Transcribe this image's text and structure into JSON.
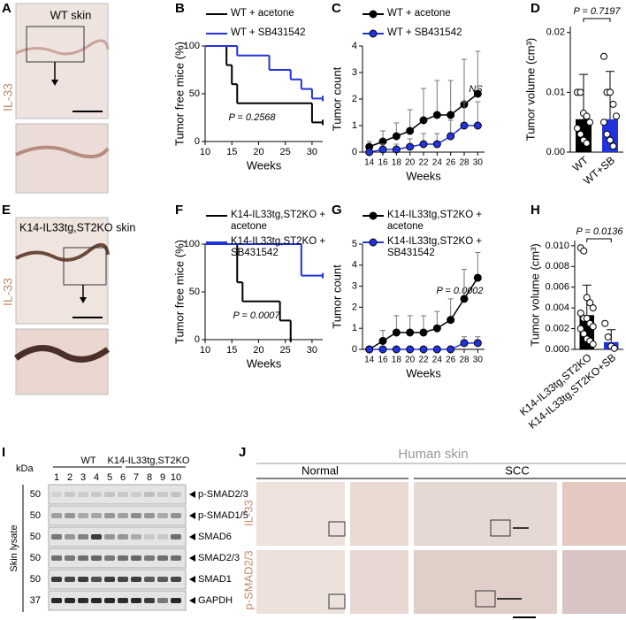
{
  "panel_labels": [
    "A",
    "B",
    "C",
    "D",
    "E",
    "F",
    "G",
    "H",
    "I",
    "J"
  ],
  "panel_a": {
    "caption": "WT skin",
    "stain": "IL-33"
  },
  "panel_e": {
    "caption": "K14-IL33tg,ST2KO skin",
    "stain": "IL-33"
  },
  "panel_i": {
    "kda_label": "kDa",
    "groups": [
      "WT",
      "K14-IL33tg,ST2KO"
    ],
    "lanes": [
      "1",
      "2",
      "3",
      "4",
      "5",
      "6",
      "7",
      "8",
      "9",
      "10"
    ],
    "markers": [
      50,
      50,
      50,
      50,
      50,
      37
    ],
    "proteins": [
      "p-SMAD2/3",
      "p-SMAD1/5",
      "SMAD6",
      "SMAD2/3",
      "SMAD1",
      "GAPDH"
    ],
    "side_label": "Skin lysate"
  },
  "panel_j": {
    "title": "Human skin",
    "columns": [
      "Normal",
      "SCC"
    ],
    "rows": [
      "IL-33",
      "p-SMAD2/3"
    ]
  },
  "chart_data": [
    {
      "type": "step",
      "ylabel": "Tumor free mice (%)",
      "xlabel": "Weeks",
      "annotation": "P = 0.2568",
      "xlim": [
        10,
        32
      ],
      "xticks": [
        10,
        15,
        20,
        25,
        30
      ],
      "ylim": [
        0,
        100
      ],
      "yticks": [
        0,
        50,
        100
      ],
      "series": [
        {
          "name": "WT + acetone",
          "color": "#000000",
          "x": [
            10,
            14,
            15,
            16,
            30,
            32
          ],
          "values": [
            100,
            80,
            60,
            40,
            20,
            20
          ]
        },
        {
          "name": "WT + SB431542",
          "color": "#2233dd",
          "x": [
            10,
            16,
            22,
            26,
            28,
            30,
            32
          ],
          "values": [
            100,
            90,
            75,
            65,
            55,
            45,
            45
          ]
        }
      ]
    },
    {
      "type": "line",
      "ylabel": "Tumor count",
      "xlabel": "Weeks",
      "annotation": "NS",
      "categories": [
        "14",
        "16",
        "18",
        "20",
        "22",
        "24",
        "26",
        "28",
        "30"
      ],
      "ylim": [
        0,
        4
      ],
      "yticks": [
        0,
        1,
        2,
        3,
        4
      ],
      "series": [
        {
          "name": "WT + acetone",
          "color": "#000000",
          "values": [
            0.2,
            0.4,
            0.6,
            0.8,
            1.2,
            1.4,
            1.4,
            1.8,
            2.2
          ],
          "errors": [
            0.2,
            0.4,
            0.5,
            0.8,
            1.2,
            1.3,
            1.3,
            1.7,
            1.6
          ]
        },
        {
          "name": "WT + SB431542",
          "color": "#2233dd",
          "values": [
            0,
            0.1,
            0.1,
            0.2,
            0.3,
            0.3,
            0.6,
            1.0,
            1.0
          ],
          "errors": [
            0.1,
            0.2,
            0.2,
            0.3,
            0.4,
            0.4,
            0.6,
            0.9,
            0.9
          ]
        }
      ]
    },
    {
      "type": "bar",
      "ylabel": "Tumor volume (cm³)",
      "annotation": "P = 0.7197",
      "categories": [
        "WT",
        "WT+SB"
      ],
      "colors": [
        "#000000",
        "#2233dd"
      ],
      "values": [
        0.0055,
        0.0055
      ],
      "errors": [
        0.0075,
        0.008
      ],
      "points": [
        [
          0.01,
          0.01,
          0.0065,
          0.006,
          0.005,
          0.004,
          0.003,
          0.002,
          0.0015
        ],
        [
          0.016,
          0.01,
          0.01,
          0.008,
          0.006,
          0.005,
          0.003,
          0.002,
          0.001
        ]
      ],
      "ylim": [
        0,
        0.021
      ],
      "yticks": [
        {
          "value": 0,
          "label": "0.00"
        },
        {
          "value": 0.01,
          "label": "0.01"
        },
        {
          "value": 0.02,
          "label": "0.02"
        }
      ]
    },
    {
      "type": "step",
      "ylabel": "Tumor free mice (%)",
      "xlabel": "Weeks",
      "annotation": "P = 0.0007",
      "xlim": [
        10,
        32
      ],
      "xticks": [
        10,
        15,
        20,
        25,
        30
      ],
      "ylim": [
        0,
        100
      ],
      "yticks": [
        0,
        50,
        100
      ],
      "series": [
        {
          "name": "K14-IL33tg,ST2KO + acetone",
          "color": "#000000",
          "x": [
            10,
            16,
            17,
            24,
            26
          ],
          "values": [
            100,
            60,
            40,
            20,
            0
          ]
        },
        {
          "name": "K14-IL33tg,ST2KO + SB431542",
          "color": "#2233dd",
          "x": [
            10,
            28,
            32
          ],
          "values": [
            100,
            67,
            67
          ]
        }
      ]
    },
    {
      "type": "line",
      "ylabel": "Tumor count",
      "xlabel": "Weeks",
      "annotation": "P = 0.0002",
      "categories": [
        "14",
        "16",
        "18",
        "20",
        "22",
        "24",
        "26",
        "28",
        "30"
      ],
      "ylim": [
        0,
        5
      ],
      "yticks": [
        0,
        1,
        2,
        3,
        4,
        5
      ],
      "series": [
        {
          "name": "K14-IL33tg,ST2KO + acetone",
          "color": "#000000",
          "values": [
            0,
            0.4,
            0.8,
            0.8,
            0.8,
            1.0,
            1.4,
            2.4,
            3.4
          ],
          "errors": [
            0,
            0.5,
            0.8,
            0.8,
            0.8,
            0.8,
            1.0,
            1.4,
            1.2
          ]
        },
        {
          "name": "K14-IL33tg,ST2KO + SB431542",
          "color": "#2233dd",
          "values": [
            0,
            0,
            0,
            0,
            0,
            0,
            0,
            0.3,
            0.3
          ],
          "errors": [
            0,
            0,
            0,
            0,
            0,
            0,
            0,
            0.3,
            0.3
          ]
        }
      ]
    },
    {
      "type": "bar",
      "ylabel": "Tumor volume (cm³)",
      "annotation": "P = 0.0136",
      "categories": [
        "K14-IL33tg,ST2KO",
        "K14-IL33tg,ST2KO+SB"
      ],
      "colors": [
        "#000000",
        "#2233dd"
      ],
      "values": [
        0.0033,
        0.0007
      ],
      "errors": [
        0.0029,
        0.0012
      ],
      "points": [
        [
          0.0098,
          0.0095,
          0.005,
          0.0045,
          0.004,
          0.0035,
          0.003,
          0.003,
          0.0025,
          0.0022,
          0.002,
          0.0015,
          0.001,
          0.0008,
          0.0005
        ],
        [
          0.0025,
          0.0012,
          0.0003,
          0.0001
        ]
      ],
      "ylim": [
        0,
        0.0105
      ],
      "yticks": [
        {
          "value": 0,
          "label": "0.000"
        },
        {
          "value": 0.002,
          "label": "0.002"
        },
        {
          "value": 0.004,
          "label": "0.004"
        },
        {
          "value": 0.006,
          "label": "0.006"
        },
        {
          "value": 0.008,
          "label": "0.008"
        },
        {
          "value": 0.01,
          "label": "0.010"
        }
      ]
    }
  ]
}
